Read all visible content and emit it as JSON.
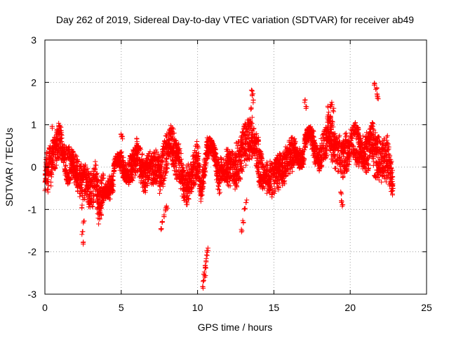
{
  "chart_data": {
    "type": "scatter",
    "title": "Day 262 of 2019, Sidereal Day-to-day VTEC variation (SDTVAR) for receiver ab49",
    "xlabel": "GPS time / hours",
    "ylabel": "SDTVAR / TECUs",
    "xlim": [
      0,
      25
    ],
    "ylim": [
      -3,
      3
    ],
    "xticks": [
      "0",
      "5",
      "10",
      "15",
      "20",
      "25"
    ],
    "yticks": [
      "-3",
      "-2",
      "-1",
      "0",
      "1",
      "2",
      "3"
    ],
    "grid": true,
    "marker": "plus",
    "series": [
      {
        "name": "SDTVAR",
        "color": "#ff0000",
        "segments": [
          {
            "x0": 0.0,
            "x1": 0.5,
            "points": [
              [
                0.0,
                -0.3
              ],
              [
                0.1,
                0.1
              ],
              [
                0.2,
                -0.4
              ],
              [
                0.3,
                0.3
              ],
              [
                0.4,
                -0.1
              ],
              [
                0.5,
                0.2
              ]
            ],
            "jitter": 0.35
          },
          {
            "x0": 0.5,
            "x1": 1.2,
            "points": [
              [
                0.5,
                0.2
              ],
              [
                0.8,
                0.5
              ],
              [
                1.0,
                0.7
              ],
              [
                1.2,
                0.3
              ]
            ],
            "jitter": 0.35
          },
          {
            "x0": 1.2,
            "x1": 2.4,
            "points": [
              [
                1.2,
                0.3
              ],
              [
                1.5,
                0.0
              ],
              [
                1.8,
                0.2
              ],
              [
                2.1,
                -0.2
              ],
              [
                2.4,
                -0.3
              ]
            ],
            "jitter": 0.35
          },
          {
            "x0": 2.4,
            "x1": 3.5,
            "points": [
              [
                2.4,
                -0.5
              ],
              [
                2.7,
                -0.4
              ],
              [
                3.0,
                -0.6
              ],
              [
                3.3,
                -0.3
              ],
              [
                3.5,
                -0.8
              ]
            ],
            "jitter": 0.4
          },
          {
            "x0": 3.5,
            "x1": 4.5,
            "points": [
              [
                3.5,
                -1.0
              ],
              [
                3.8,
                -0.4
              ],
              [
                4.1,
                -0.3
              ],
              [
                4.5,
                -0.6
              ]
            ],
            "jitter": 0.35
          },
          {
            "x0": 4.5,
            "x1": 6.0,
            "points": [
              [
                4.5,
                -0.2
              ],
              [
                5.0,
                0.1
              ],
              [
                5.5,
                -0.1
              ],
              [
                6.0,
                0.2
              ]
            ],
            "jitter": 0.3
          },
          {
            "x0": 6.0,
            "x1": 7.5,
            "points": [
              [
                6.0,
                0.3
              ],
              [
                6.5,
                -0.2
              ],
              [
                7.0,
                0.0
              ],
              [
                7.5,
                0.1
              ]
            ],
            "jitter": 0.35
          },
          {
            "x0": 7.5,
            "x1": 8.8,
            "points": [
              [
                7.5,
                -0.3
              ],
              [
                7.8,
                0.1
              ],
              [
                8.2,
                0.7
              ],
              [
                8.5,
                0.3
              ],
              [
                8.8,
                0.1
              ]
            ],
            "jitter": 0.4
          },
          {
            "x0": 8.8,
            "x1": 10.2,
            "points": [
              [
                8.8,
                0.0
              ],
              [
                9.2,
                -0.5
              ],
              [
                9.6,
                -0.3
              ],
              [
                10.0,
                0.2
              ],
              [
                10.2,
                -0.2
              ]
            ],
            "jitter": 0.4
          },
          {
            "x0": 10.2,
            "x1": 11.5,
            "points": [
              [
                10.2,
                -0.4
              ],
              [
                10.6,
                0.4
              ],
              [
                11.0,
                0.1
              ],
              [
                11.5,
                -0.2
              ]
            ],
            "jitter": 0.4
          },
          {
            "x0": 11.5,
            "x1": 12.5,
            "points": [
              [
                11.5,
                0.1
              ],
              [
                12.0,
                0.0
              ],
              [
                12.5,
                -0.1
              ]
            ],
            "jitter": 0.35
          },
          {
            "x0": 12.5,
            "x1": 14.0,
            "points": [
              [
                12.5,
                0.0
              ],
              [
                13.0,
                0.4
              ],
              [
                13.5,
                0.8
              ],
              [
                14.0,
                0.3
              ]
            ],
            "jitter": 0.45
          },
          {
            "x0": 14.0,
            "x1": 15.5,
            "points": [
              [
                14.0,
                0.0
              ],
              [
                14.5,
                -0.2
              ],
              [
                15.0,
                -0.3
              ],
              [
                15.5,
                0.0
              ]
            ],
            "jitter": 0.35
          },
          {
            "x0": 15.5,
            "x1": 17.0,
            "points": [
              [
                15.5,
                -0.1
              ],
              [
                16.0,
                0.2
              ],
              [
                16.5,
                0.5
              ],
              [
                17.0,
                0.1
              ]
            ],
            "jitter": 0.35
          },
          {
            "x0": 17.0,
            "x1": 18.5,
            "points": [
              [
                17.0,
                0.4
              ],
              [
                17.5,
                0.6
              ],
              [
                18.0,
                0.3
              ],
              [
                18.5,
                0.7
              ]
            ],
            "jitter": 0.35
          },
          {
            "x0": 18.5,
            "x1": 20.0,
            "points": [
              [
                18.5,
                1.0
              ],
              [
                19.0,
                0.4
              ],
              [
                19.5,
                0.2
              ],
              [
                20.0,
                0.5
              ]
            ],
            "jitter": 0.4
          },
          {
            "x0": 20.0,
            "x1": 21.5,
            "points": [
              [
                20.0,
                0.7
              ],
              [
                20.5,
                0.5
              ],
              [
                21.0,
                0.3
              ],
              [
                21.5,
                0.6
              ]
            ],
            "jitter": 0.4
          },
          {
            "x0": 21.5,
            "x1": 22.8,
            "points": [
              [
                21.5,
                0.4
              ],
              [
                22.0,
                0.1
              ],
              [
                22.5,
                0.2
              ],
              [
                22.8,
                -0.2
              ]
            ],
            "jitter": 0.45
          }
        ],
        "outliers": [
          [
            2.5,
            -1.8
          ],
          [
            2.45,
            -1.55
          ],
          [
            2.55,
            -1.3
          ],
          [
            3.6,
            -1.2
          ],
          [
            3.7,
            -1.1
          ],
          [
            7.6,
            -1.45
          ],
          [
            7.7,
            -1.3
          ],
          [
            7.8,
            -1.15
          ],
          [
            7.9,
            -1.0
          ],
          [
            8.0,
            -0.95
          ],
          [
            10.35,
            -2.85
          ],
          [
            10.4,
            -2.7
          ],
          [
            10.45,
            -2.5
          ],
          [
            10.5,
            -2.35
          ],
          [
            10.55,
            -2.2
          ],
          [
            10.6,
            -2.05
          ],
          [
            10.65,
            -1.95
          ],
          [
            10.5,
            -2.6
          ],
          [
            10.55,
            -2.4
          ],
          [
            12.9,
            -1.5
          ],
          [
            13.0,
            -1.3
          ],
          [
            13.1,
            -1.0
          ],
          [
            13.2,
            -0.8
          ],
          [
            13.55,
            1.8
          ],
          [
            13.6,
            1.7
          ],
          [
            13.65,
            1.55
          ],
          [
            13.5,
            1.4
          ],
          [
            17.05,
            1.55
          ],
          [
            17.1,
            1.4
          ],
          [
            18.7,
            1.45
          ],
          [
            18.8,
            1.5
          ],
          [
            18.9,
            1.35
          ],
          [
            19.45,
            -0.8
          ],
          [
            19.5,
            -0.9
          ],
          [
            19.4,
            -0.6
          ],
          [
            21.6,
            1.95
          ],
          [
            21.7,
            1.85
          ],
          [
            21.75,
            1.7
          ],
          [
            21.8,
            1.65
          ],
          [
            0.45,
            0.95
          ],
          [
            5.0,
            0.75
          ],
          [
            5.05,
            0.7
          ]
        ]
      }
    ]
  }
}
